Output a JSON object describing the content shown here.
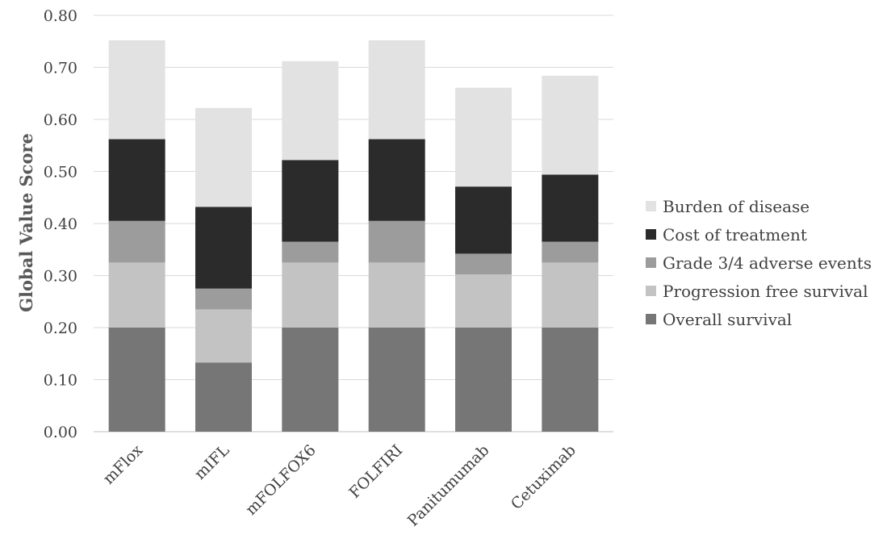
{
  "chart_data": {
    "type": "bar",
    "stacked": true,
    "ylabel": "Global Value Score",
    "ylim": [
      0,
      0.8
    ],
    "ytick_labels": [
      "0.00",
      "0.10",
      "0.20",
      "0.30",
      "0.40",
      "0.50",
      "0.60",
      "0.70",
      "0.80"
    ],
    "grid": true,
    "legend_position": "right",
    "categories": [
      "mFlox",
      "mIFL",
      "mFOLFOX6",
      "FOLFIRI",
      "Panitumumab",
      "Cetuximab"
    ],
    "series": [
      {
        "name": "Overall survival",
        "color": "#767676",
        "values": [
          0.2,
          0.133,
          0.2,
          0.2,
          0.2,
          0.2
        ]
      },
      {
        "name": "Progression free survival",
        "color": "#c3c3c3",
        "values": [
          0.125,
          0.102,
          0.125,
          0.125,
          0.102,
          0.125
        ]
      },
      {
        "name": "Grade 3/4 adverse events",
        "color": "#9c9c9c",
        "values": [
          0.08,
          0.04,
          0.04,
          0.08,
          0.04,
          0.04
        ]
      },
      {
        "name": "Cost of treatment",
        "color": "#2b2b2b",
        "values": [
          0.157,
          0.157,
          0.157,
          0.157,
          0.129,
          0.129
        ]
      },
      {
        "name": "Burden of disease",
        "color": "#e2e2e2",
        "values": [
          0.19,
          0.19,
          0.19,
          0.19,
          0.19,
          0.19
        ]
      }
    ]
  }
}
